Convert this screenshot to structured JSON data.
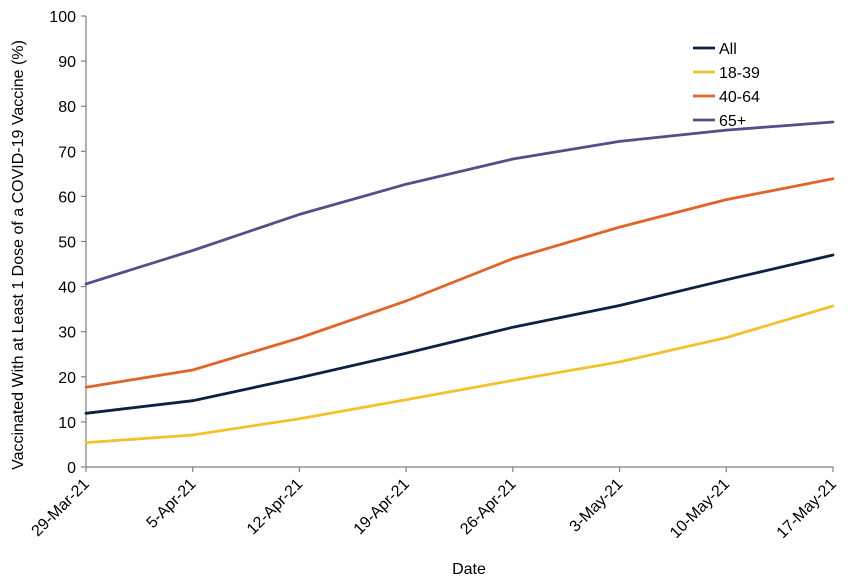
{
  "chart_data": {
    "type": "line",
    "title": "",
    "xlabel": "Date",
    "ylabel": "Vaccinated With at Least 1 Dose of a COVID-19 Vaccine (%)",
    "ylim": [
      0,
      100
    ],
    "yticks": [
      "0",
      "10",
      "20",
      "30",
      "40",
      "50",
      "60",
      "70",
      "80",
      "90",
      "100"
    ],
    "categories": [
      "29-Mar-21",
      "5-Apr-21",
      "12-Apr-21",
      "19-Apr-21",
      "26-Apr-21",
      "3-May-21",
      "10-May-21",
      "17-May-21"
    ],
    "grid": false,
    "legend_position": "top-right",
    "series": [
      {
        "name": "All",
        "color": "#0d2142",
        "values": [
          11.9,
          14.7,
          19.8,
          25.2,
          31.0,
          35.8,
          41.5,
          47.0
        ]
      },
      {
        "name": "18-39",
        "color": "#f2c12e",
        "values": [
          5.4,
          7.1,
          10.7,
          14.9,
          19.2,
          23.3,
          28.7,
          35.7
        ]
      },
      {
        "name": "40-64",
        "color": "#e0652a",
        "values": [
          17.7,
          21.5,
          28.6,
          36.8,
          46.2,
          53.2,
          59.3,
          63.9
        ]
      },
      {
        "name": "65+",
        "color": "#5b4b8a",
        "values": [
          40.6,
          48.0,
          56.0,
          62.7,
          68.3,
          72.2,
          74.7,
          76.5
        ]
      }
    ]
  }
}
